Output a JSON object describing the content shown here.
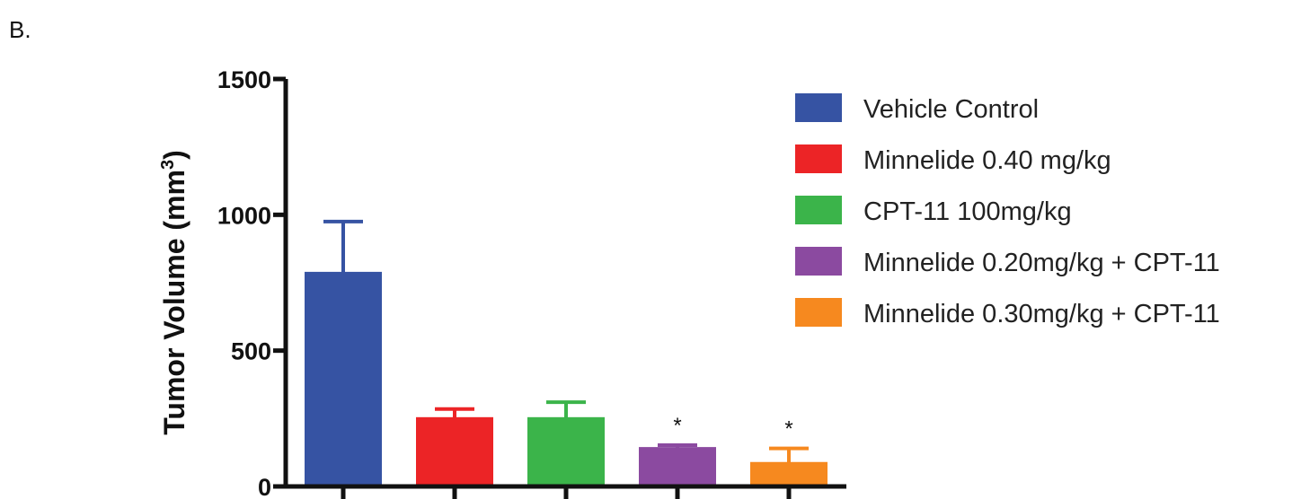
{
  "panel_label": "B.",
  "chart_data": {
    "type": "bar",
    "title": "",
    "xlabel": "",
    "ylabel_main": "Tumor Volume (mm",
    "ylabel_sup": "3",
    "ylabel_close": ")",
    "ylim": [
      0,
      1500
    ],
    "yticks": [
      {
        "value": 0,
        "label": "0"
      },
      {
        "value": 500,
        "label": "500"
      },
      {
        "value": 1000,
        "label": "1000"
      },
      {
        "value": 1500,
        "label": "1500"
      }
    ],
    "categories": [
      "Vehicle Control",
      "Minnelide 0.40 mg/kg",
      "CPT-11 100mg/kg",
      "Minnelide 0.20mg/kg + CPT-11",
      "Minnelide 0.30mg/kg + CPT-11"
    ],
    "values": [
      790,
      255,
      255,
      145,
      90
    ],
    "error_upper": [
      975,
      285,
      310,
      152,
      140
    ],
    "significance": [
      "",
      "",
      "",
      "*",
      "*"
    ],
    "colors": [
      "#3653a3",
      "#ec2426",
      "#3bb44a",
      "#8b4aa0",
      "#f6891f"
    ],
    "legend_position": "top-right",
    "legend": [
      {
        "label": "Vehicle Control",
        "color": "#3653a3"
      },
      {
        "label": "Minnelide 0.40 mg/kg",
        "color": "#ec2426"
      },
      {
        "label": "CPT-11 100mg/kg",
        "color": "#3bb44a"
      },
      {
        "label": "Minnelide 0.20mg/kg + CPT-11",
        "color": "#8b4aa0"
      },
      {
        "label": "Minnelide 0.30mg/kg + CPT-11",
        "color": "#f6891f"
      }
    ]
  }
}
